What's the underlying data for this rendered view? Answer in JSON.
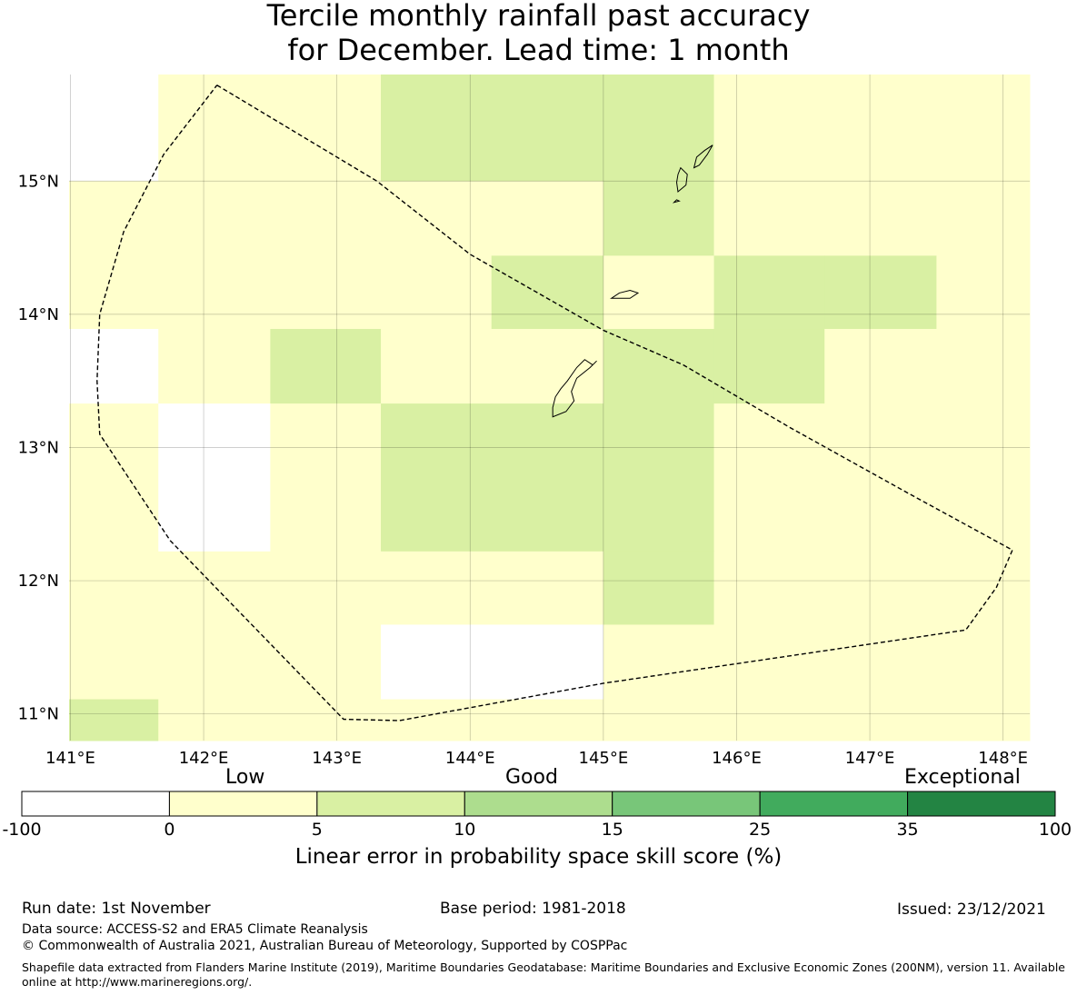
{
  "title": {
    "line1": "Tercile monthly rainfall past accuracy",
    "line2": "for December. Lead time: 1 month"
  },
  "map": {
    "lon_range": [
      140.99,
      148.2
    ],
    "lat_range": [
      10.8,
      15.8
    ],
    "x_ticks": [
      141,
      142,
      143,
      144,
      145,
      146,
      147,
      148
    ],
    "x_tick_labels": [
      "141°E",
      "142°E",
      "143°E",
      "144°E",
      "145°E",
      "146°E",
      "147°E",
      "148°E"
    ],
    "y_ticks": [
      11,
      12,
      13,
      14,
      15
    ],
    "y_tick_labels": [
      "11°N",
      "12°N",
      "13°N",
      "14°N",
      "15°N"
    ],
    "grid_lon_edges": [
      140.99,
      141.66,
      142.5,
      143.33,
      144.16,
      145.0,
      145.83,
      146.66,
      147.5,
      148.2
    ],
    "grid_lat_edges": [
      15.8,
      15.0,
      14.44,
      13.89,
      13.33,
      12.22,
      11.67,
      11.11,
      10.8
    ],
    "skill_grid": [
      [
        "<0",
        "0-5",
        "0-5",
        "5-10",
        "5-10",
        "5-10",
        "0-5",
        "0-5",
        "0-5"
      ],
      [
        "0-5",
        "0-5",
        "0-5",
        "0-5",
        "0-5",
        "5-10",
        "0-5",
        "0-5",
        "0-5"
      ],
      [
        "0-5",
        "0-5",
        "0-5",
        "0-5",
        "5-10",
        "0-5",
        "5-10",
        "5-10",
        "0-5"
      ],
      [
        "<0",
        "0-5",
        "5-10",
        "0-5",
        "0-5",
        "5-10",
        "5-10",
        "0-5",
        "0-5"
      ],
      [
        "0-5",
        "<0",
        "0-5",
        "5-10",
        "5-10",
        "5-10",
        "0-5",
        "0-5",
        "0-5"
      ],
      [
        "0-5",
        "0-5",
        "0-5",
        "0-5",
        "0-5",
        "5-10",
        "0-5",
        "0-5",
        "0-5"
      ],
      [
        "0-5",
        "0-5",
        "0-5",
        "<0",
        "<0",
        "0-5",
        "0-5",
        "0-5",
        "0-5"
      ],
      [
        "5-10",
        "0-5",
        "0-5",
        "0-5",
        "0-5",
        "0-5",
        "0-5",
        "0-5",
        "0-5"
      ]
    ],
    "eez_boundary_lonlat": [
      [
        142.1,
        15.72
      ],
      [
        143.3,
        15.0
      ],
      [
        144.0,
        14.45
      ],
      [
        145.0,
        13.88
      ],
      [
        145.6,
        13.62
      ],
      [
        146.4,
        13.15
      ],
      [
        147.3,
        12.65
      ],
      [
        148.07,
        12.23
      ],
      [
        147.95,
        11.95
      ],
      [
        147.72,
        11.63
      ],
      [
        145.0,
        11.23
      ],
      [
        143.47,
        10.95
      ],
      [
        143.05,
        10.96
      ],
      [
        141.75,
        12.3
      ],
      [
        141.22,
        13.1
      ],
      [
        141.2,
        13.5
      ],
      [
        141.22,
        14.0
      ],
      [
        141.4,
        14.62
      ],
      [
        141.7,
        15.2
      ],
      [
        142.1,
        15.72
      ]
    ],
    "islands_lonlat": [
      [
        [
          144.62,
          13.23
        ],
        [
          144.72,
          13.27
        ],
        [
          144.78,
          13.35
        ],
        [
          144.76,
          13.42
        ],
        [
          144.8,
          13.52
        ],
        [
          144.9,
          13.6
        ],
        [
          144.95,
          13.65
        ],
        [
          144.92,
          13.62
        ],
        [
          144.86,
          13.66
        ],
        [
          144.8,
          13.6
        ],
        [
          144.73,
          13.5
        ],
        [
          144.68,
          13.44
        ],
        [
          144.64,
          13.38
        ],
        [
          144.62,
          13.3
        ],
        [
          144.62,
          13.23
        ]
      ],
      [
        [
          145.06,
          14.12
        ],
        [
          145.12,
          14.16
        ],
        [
          145.2,
          14.18
        ],
        [
          145.26,
          14.16
        ],
        [
          145.2,
          14.12
        ],
        [
          145.12,
          14.12
        ],
        [
          145.06,
          14.12
        ]
      ],
      [
        [
          145.56,
          14.92
        ],
        [
          145.62,
          14.97
        ],
        [
          145.63,
          15.05
        ],
        [
          145.58,
          15.1
        ],
        [
          145.56,
          15.05
        ],
        [
          145.55,
          14.99
        ],
        [
          145.56,
          14.92
        ]
      ],
      [
        [
          145.68,
          15.1
        ],
        [
          145.72,
          15.12
        ],
        [
          145.78,
          15.2
        ],
        [
          145.82,
          15.27
        ],
        [
          145.76,
          15.23
        ],
        [
          145.7,
          15.18
        ],
        [
          145.68,
          15.1
        ]
      ],
      [
        [
          145.53,
          14.84
        ],
        [
          145.57,
          14.85
        ],
        [
          145.55,
          14.86
        ],
        [
          145.53,
          14.84
        ]
      ]
    ]
  },
  "colorbar": {
    "categories": {
      "low": "Low",
      "good": "Good",
      "exceptional": "Exceptional"
    },
    "bins": [
      {
        "range": "<0",
        "color": "#ffffff"
      },
      {
        "range": "0-5",
        "color": "#ffffcc"
      },
      {
        "range": "5-10",
        "color": "#d9f0a3"
      },
      {
        "range": "10-15",
        "color": "#addd8e"
      },
      {
        "range": "15-25",
        "color": "#78c679"
      },
      {
        "range": "25-35",
        "color": "#41ab5d"
      },
      {
        "range": "35-100",
        "color": "#238443"
      }
    ],
    "tick_labels": [
      "-100",
      "0",
      "5",
      "10",
      "15",
      "25",
      "35",
      "100"
    ],
    "label": "Linear error in probability space skill score (%)"
  },
  "footer": {
    "run_date": "Run date: 1st November",
    "base_period": "Base period: 1981-2018",
    "issued": "Issued: 23/12/2021",
    "data_source": "Data source: ACCESS-S2 and ERA5 Climate Reanalysis",
    "copyright": "© Commonwealth of Australia 2021, Australian Bureau of Meteorology, Supported by COSPPac",
    "shapefile": "Shapefile data extracted from Flanders Marine Institute (2019), Maritime Boundaries Geodatabase: Maritime Boundaries and Exclusive Economic Zones (200NM), version 11. Available online at http://www.marineregions.org/."
  }
}
